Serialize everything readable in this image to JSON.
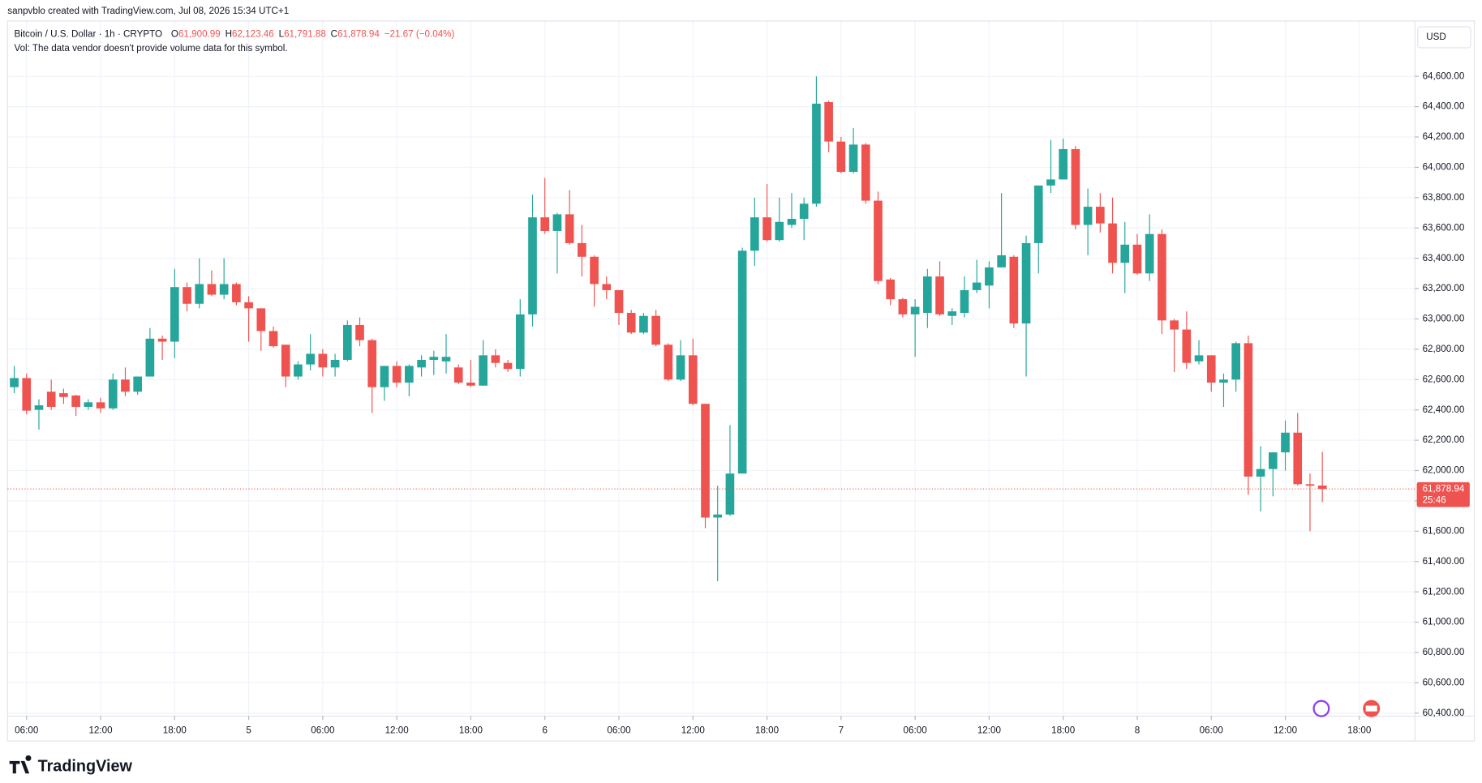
{
  "chart_data": {
    "type": "candlestick",
    "watermark": "sanpvblo created with TradingView.com, Jul 08, 2026 15:34 UTC+1",
    "symbol": "Bitcoin / U.S. Dollar · 1h · CRYPTO",
    "legend_values": [
      {
        "key": "O",
        "value": "61,900.99"
      },
      {
        "key": "H",
        "value": "62,123.46"
      },
      {
        "key": "L",
        "value": "61,791.88"
      },
      {
        "key": "C",
        "value": "61,878.94"
      }
    ],
    "change": "−21.67 (−0.04%)",
    "volume_note": "Vol: The data vendor doesn't provide volume data for this symbol.",
    "currency": "USD",
    "brand": "TradingView",
    "up_color": "#26a69a",
    "down_color": "#ef5350",
    "grid": true,
    "last_price": {
      "value": 61878.94,
      "label": "61,878.94",
      "countdown": "25:46"
    },
    "xlim": [
      -0.54,
      113.5
    ],
    "xticks": [
      {
        "value": 1,
        "label": "06:00"
      },
      {
        "value": 7,
        "label": "12:00"
      },
      {
        "value": 13,
        "label": "18:00"
      },
      {
        "value": 19,
        "label": "5"
      },
      {
        "value": 25,
        "label": "06:00"
      },
      {
        "value": 31,
        "label": "12:00"
      },
      {
        "value": 37,
        "label": "18:00"
      },
      {
        "value": 43,
        "label": "6"
      },
      {
        "value": 49,
        "label": "06:00"
      },
      {
        "value": 55,
        "label": "12:00"
      },
      {
        "value": 61,
        "label": "18:00"
      },
      {
        "value": 67,
        "label": "7"
      },
      {
        "value": 73,
        "label": "06:00"
      },
      {
        "value": 79,
        "label": "12:00"
      },
      {
        "value": 85,
        "label": "18:00"
      },
      {
        "value": 91,
        "label": "8"
      },
      {
        "value": 97,
        "label": "06:00"
      },
      {
        "value": 103,
        "label": "12:00"
      },
      {
        "value": 109,
        "label": "18:00"
      }
    ],
    "ylim": [
      60380,
      64965
    ],
    "yticks": [
      {
        "value": 60400,
        "label": "60,400.00"
      },
      {
        "value": 60600,
        "label": "60,600.00"
      },
      {
        "value": 60800,
        "label": "60,800.00"
      },
      {
        "value": 61000,
        "label": "61,000.00"
      },
      {
        "value": 61200,
        "label": "61,200.00"
      },
      {
        "value": 61400,
        "label": "61,400.00"
      },
      {
        "value": 61600,
        "label": "61,600.00"
      },
      {
        "value": 61800,
        "label": "61,800.00"
      },
      {
        "value": 62000,
        "label": "62,000.00"
      },
      {
        "value": 62200,
        "label": "62,200.00"
      },
      {
        "value": 62400,
        "label": "62,400.00"
      },
      {
        "value": 62600,
        "label": "62,600.00"
      },
      {
        "value": 62800,
        "label": "62,800.00"
      },
      {
        "value": 63000,
        "label": "63,000.00"
      },
      {
        "value": 63200,
        "label": "63,200.00"
      },
      {
        "value": 63400,
        "label": "63,400.00"
      },
      {
        "value": 63600,
        "label": "63,600.00"
      },
      {
        "value": 63800,
        "label": "63,800.00"
      },
      {
        "value": 64000,
        "label": "64,000.00"
      },
      {
        "value": 64200,
        "label": "64,200.00"
      },
      {
        "value": 64400,
        "label": "64,400.00"
      },
      {
        "value": 64600,
        "label": "64,600.00"
      }
    ],
    "open": [
      62550,
      62610,
      62400,
      62520,
      62510,
      62495,
      62420,
      62450,
      62410,
      62600,
      62520,
      62620,
      62870,
      62850,
      63210,
      63100,
      63230,
      63160,
      63230,
      63110,
      63070,
      62920,
      62830,
      62620,
      62700,
      62770,
      62680,
      62730,
      62960,
      62860,
      62550,
      62690,
      62580,
      62680,
      62730,
      62720,
      62680,
      62580,
      62560,
      62760,
      62710,
      62670,
      63030,
      63670,
      63580,
      63690,
      63500,
      63410,
      63230,
      63190,
      63040,
      62910,
      63020,
      62830,
      62600,
      62760,
      62440,
      61690,
      61710,
      61980,
      63450,
      63670,
      63520,
      63620,
      63660,
      63760,
      64430,
      64170,
      63970,
      64150,
      63780,
      63260,
      63130,
      63030,
      63040,
      63280,
      63020,
      63040,
      63190,
      63220,
      63340,
      63410,
      62970,
      63500,
      63880,
      63920,
      64120,
      63620,
      63740,
      63630,
      63370,
      63490,
      63300,
      63560,
      62990,
      62930,
      62720,
      62760,
      62580,
      62600,
      62840,
      61960,
      62010,
      62120,
      62250,
      61910,
      61900.99
    ],
    "high": [
      62690,
      62640,
      62470,
      62600,
      62540,
      62500,
      62470,
      62480,
      62640,
      62680,
      62620,
      62940,
      62890,
      63330,
      63240,
      63400,
      63320,
      63400,
      63240,
      63150,
      63070,
      62950,
      62830,
      62720,
      62900,
      62800,
      62770,
      62990,
      63010,
      62870,
      62690,
      62720,
      62700,
      62760,
      62790,
      62900,
      62700,
      62730,
      62860,
      62800,
      62730,
      63130,
      63820,
      63930,
      63700,
      63850,
      63620,
      63420,
      63280,
      63190,
      63060,
      63040,
      63060,
      62840,
      62860,
      62870,
      62440,
      61900,
      62300,
      63470,
      63800,
      63890,
      63800,
      63830,
      63800,
      64600,
      64440,
      64200,
      64260,
      64160,
      63840,
      63270,
      63140,
      63130,
      63330,
      63380,
      63070,
      63280,
      63390,
      63380,
      63830,
      63420,
      63550,
      63880,
      64180,
      64190,
      64140,
      63860,
      63830,
      63800,
      63640,
      63560,
      63690,
      63590,
      63000,
      63050,
      62860,
      62760,
      62640,
      62850,
      62890,
      62160,
      62120,
      62330,
      62380,
      61980,
      62123.46
    ],
    "low": [
      62510,
      62370,
      62270,
      62400,
      62440,
      62360,
      62400,
      62380,
      62400,
      62490,
      62500,
      62620,
      62730,
      62740,
      63050,
      63070,
      63150,
      63130,
      63090,
      62850,
      62790,
      62810,
      62550,
      62600,
      62660,
      62620,
      62620,
      62720,
      62820,
      62380,
      62460,
      62550,
      62490,
      62620,
      62630,
      62640,
      62570,
      62550,
      62560,
      62680,
      62650,
      62620,
      62950,
      63560,
      63300,
      63490,
      63280,
      63080,
      63130,
      62960,
      62900,
      62900,
      62820,
      62590,
      62590,
      62430,
      61620,
      61270,
      61700,
      61980,
      63350,
      63510,
      63510,
      63600,
      63520,
      63740,
      64100,
      63960,
      63960,
      63760,
      63230,
      63090,
      63010,
      62750,
      62940,
      63020,
      62960,
      63010,
      63170,
      63070,
      63340,
      62940,
      62620,
      63300,
      63830,
      63920,
      63590,
      63420,
      63570,
      63300,
      63170,
      63290,
      63250,
      62900,
      62650,
      62670,
      62700,
      62520,
      62420,
      62520,
      61840,
      61730,
      61830,
      62000,
      61900,
      61600,
      61791.88
    ],
    "close": [
      62610,
      62395,
      62430,
      62420,
      62485,
      62420,
      62450,
      62410,
      62600,
      62520,
      62620,
      62870,
      62850,
      63210,
      63100,
      63230,
      63160,
      63230,
      63110,
      63070,
      62920,
      62820,
      62620,
      62700,
      62770,
      62680,
      62730,
      62960,
      62860,
      62550,
      62690,
      62580,
      62690,
      62730,
      62750,
      62750,
      62580,
      62560,
      62760,
      62710,
      62670,
      63030,
      63670,
      63580,
      63690,
      63500,
      63410,
      63230,
      63190,
      63040,
      62910,
      63020,
      62830,
      62600,
      62760,
      62440,
      61690,
      61710,
      61980,
      63450,
      63670,
      63520,
      63640,
      63660,
      63760,
      64420,
      64170,
      63970,
      64150,
      63780,
      63250,
      63130,
      63030,
      63080,
      63280,
      63030,
      63050,
      63190,
      63240,
      63340,
      63420,
      62970,
      63500,
      63880,
      63920,
      64120,
      63620,
      63740,
      63630,
      63370,
      63490,
      63300,
      63560,
      62990,
      62930,
      62710,
      62760,
      62580,
      62600,
      62840,
      61960,
      62010,
      62120,
      62250,
      61910,
      61900,
      61878.94
    ]
  }
}
